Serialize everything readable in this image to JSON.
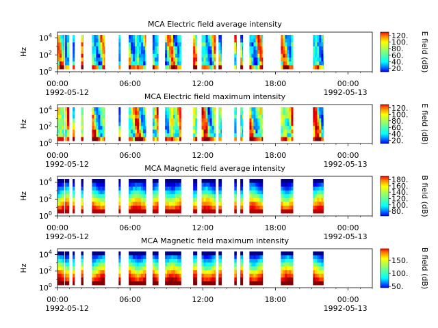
{
  "chart_data": [
    {
      "type": "heatmap",
      "title": "MCA  Electric field average intensity",
      "ylabel": "Hz",
      "y_scale": "log",
      "y_ticks": [
        {
          "base": "10",
          "exp": "0"
        },
        {
          "base": "10",
          "exp": "2"
        },
        {
          "base": "10",
          "exp": "4"
        }
      ],
      "x_range": [
        "1992-05-12 00:00",
        "1992-05-13 00:00"
      ],
      "x_ticks": [
        "00:00",
        "06:00",
        "12:00",
        "18:00",
        "00:00"
      ],
      "x_date_start": "1992-05-12",
      "x_date_end": "1992-05-13",
      "colorbar": {
        "label": "E field (dB)",
        "ticks": [
          "20.",
          "40.",
          "60.",
          "80.",
          "100.",
          "120."
        ],
        "range": [
          10,
          130
        ]
      },
      "palette": "ee",
      "intensity": "avg"
    },
    {
      "type": "heatmap",
      "title": "MCA  Electric field maximum intensity",
      "ylabel": "Hz",
      "y_scale": "log",
      "y_ticks": [
        {
          "base": "10",
          "exp": "0"
        },
        {
          "base": "10",
          "exp": "2"
        },
        {
          "base": "10",
          "exp": "4"
        }
      ],
      "x_range": [
        "1992-05-12 00:00",
        "1992-05-13 00:00"
      ],
      "x_ticks": [
        "00:00",
        "06:00",
        "12:00",
        "18:00",
        "00:00"
      ],
      "x_date_start": "1992-05-12",
      "x_date_end": "1992-05-13",
      "colorbar": {
        "label": "E field (dB)",
        "ticks": [
          "20.",
          "40.",
          "60.",
          "80.",
          "100.",
          "120."
        ],
        "range": [
          10,
          130
        ]
      },
      "palette": "ee",
      "intensity": "max"
    },
    {
      "type": "heatmap",
      "title": "MCA  Magnetic field average intensity",
      "ylabel": "Hz",
      "y_scale": "log",
      "y_ticks": [
        {
          "base": "10",
          "exp": "0"
        },
        {
          "base": "10",
          "exp": "2"
        },
        {
          "base": "10",
          "exp": "4"
        }
      ],
      "x_range": [
        "1992-05-12 00:00",
        "1992-05-13 00:00"
      ],
      "x_ticks": [
        "00:00",
        "06:00",
        "12:00",
        "18:00",
        "00:00"
      ],
      "x_date_start": "1992-05-12",
      "x_date_end": "1992-05-13",
      "colorbar": {
        "label": "B field (dB)",
        "ticks": [
          "80.",
          "100.",
          "120.",
          "140.",
          "160.",
          "180."
        ],
        "range": [
          65,
          190
        ]
      },
      "palette": "bb",
      "intensity": "avg"
    },
    {
      "type": "heatmap",
      "title": "MCA  Magnetic field maximum intensity",
      "ylabel": "Hz",
      "y_scale": "log",
      "y_ticks": [
        {
          "base": "10",
          "exp": "0"
        },
        {
          "base": "10",
          "exp": "2"
        },
        {
          "base": "10",
          "exp": "4"
        }
      ],
      "x_range": [
        "1992-05-12 00:00",
        "1992-05-13 00:00"
      ],
      "x_ticks": [
        "00:00",
        "06:00",
        "12:00",
        "18:00",
        "00:00"
      ],
      "x_date_start": "1992-05-12",
      "x_date_end": "1992-05-13",
      "colorbar": {
        "label": "B field (dB)",
        "ticks": [
          "50.",
          "100.",
          "150."
        ],
        "range": [
          45,
          195
        ]
      },
      "palette": "bb",
      "intensity": "max"
    }
  ],
  "data_segments_hours": [
    [
      0.0,
      0.55
    ],
    [
      0.62,
      0.95
    ],
    [
      1.25,
      1.4
    ],
    [
      1.95,
      2.12
    ],
    [
      2.85,
      3.9
    ],
    [
      5.05,
      5.2
    ],
    [
      5.88,
      7.3
    ],
    [
      7.85,
      8.32
    ],
    [
      8.88,
      10.2
    ],
    [
      11.2,
      11.52
    ],
    [
      11.9,
      13.05
    ],
    [
      13.3,
      13.55
    ],
    [
      14.6,
      14.78
    ],
    [
      15.1,
      15.3
    ],
    [
      15.85,
      16.95
    ],
    [
      18.45,
      19.45
    ],
    [
      21.1,
      21.95
    ]
  ],
  "colors": {
    "jet": [
      "#00007f",
      "#0000ff",
      "#007fff",
      "#00ffff",
      "#7fff7f",
      "#ffff00",
      "#ff7f00",
      "#ff0000",
      "#7f0000"
    ]
  }
}
